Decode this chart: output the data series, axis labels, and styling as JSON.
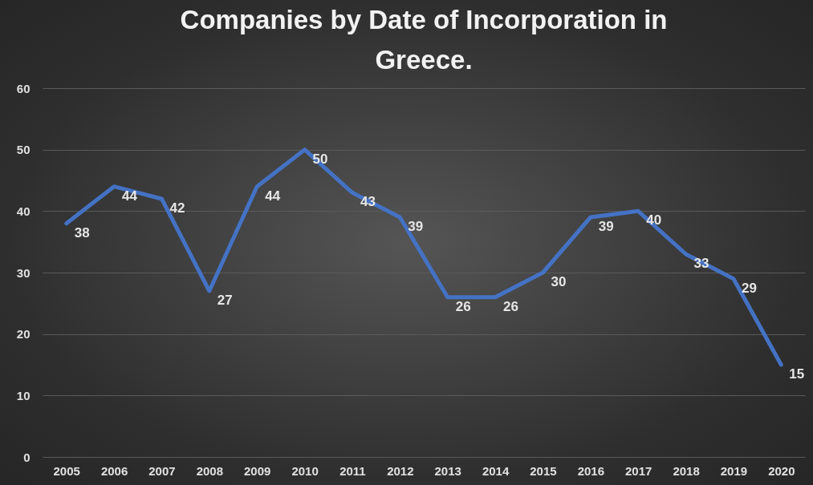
{
  "chart_data": {
    "type": "line",
    "title": "Companies by Date of Incorporation in Greece.",
    "categories": [
      "2005",
      "2006",
      "2007",
      "2008",
      "2009",
      "2010",
      "2011",
      "2012",
      "2013",
      "2014",
      "2015",
      "2016",
      "2017",
      "2018",
      "2019",
      "2020"
    ],
    "values": [
      38,
      44,
      42,
      27,
      44,
      50,
      43,
      39,
      26,
      26,
      30,
      39,
      40,
      33,
      29,
      15
    ],
    "color": "#4472c4",
    "ylim": [
      0,
      60
    ],
    "yticks": [
      0,
      10,
      20,
      30,
      40,
      50,
      60
    ],
    "grid": "y",
    "data_labels": true,
    "marker": "none",
    "line_style": "solid"
  }
}
